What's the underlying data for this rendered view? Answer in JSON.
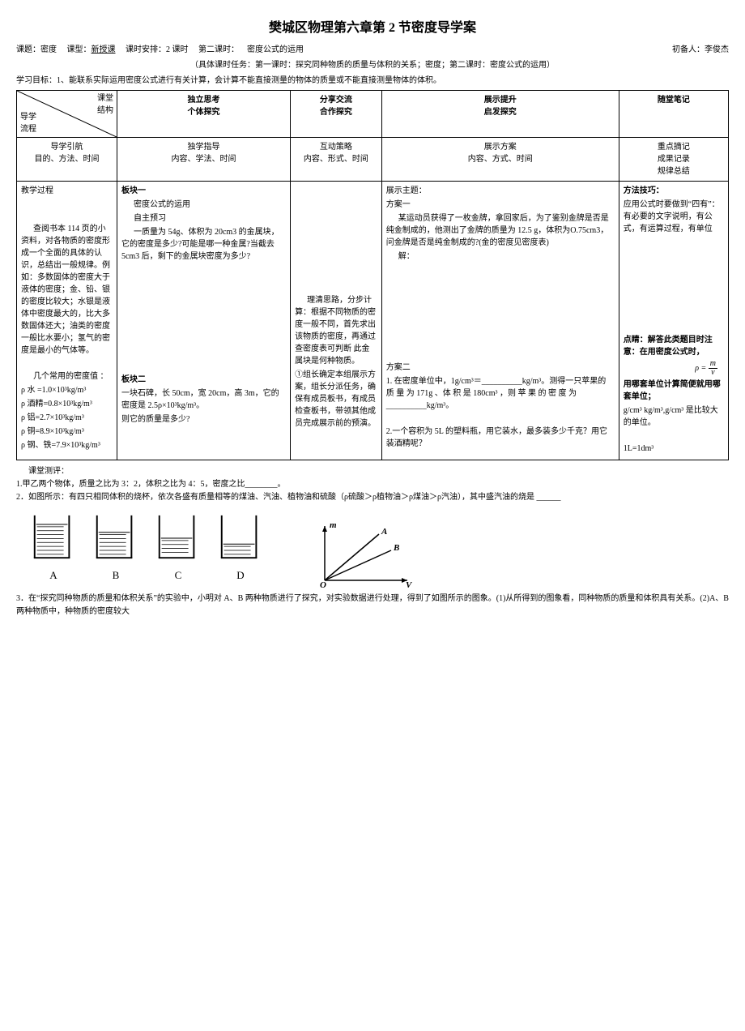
{
  "title": "樊城区物理第六章第 2 节密度导学案",
  "meta": {
    "topic_label": "课题：密度",
    "type_label": "课型：",
    "type_value": "新授课",
    "hours_label": "课时安排：2 课时",
    "second_hour": "第二课时：",
    "second_hour_content": "密度公式的运用",
    "preparer_label": "初备人：李俊杰"
  },
  "subtitle": "（具体课时任务：第一课时：探究同种物质的质量与体积的关系；密度；第二课时：密度公式的运用）",
  "objective": "学习目标：1、能联系实际运用密度公式进行有关计算，会计算不能直接测量的物体的质量或不能直接测量物体的体积。",
  "header": {
    "diag_top": "课堂\n结构",
    "diag_bottom": "导学\n流程",
    "col2_a": "独立思考",
    "col2_b": "个体探究",
    "col3_a": "分享交流",
    "col3_b": "合作探究",
    "col4_a": "展示提升",
    "col4_b": "启发探究",
    "col5": "随堂笔记"
  },
  "row2": {
    "c1_a": "导学引航",
    "c1_b": "目的、方法、时间",
    "c2_a": "独学指导",
    "c2_b": "内容、学法、时间",
    "c3_a": "互动策略",
    "c3_b": "内容、形式、时间",
    "c4_a": "展示方案",
    "c4_b": "内容、方式、时间",
    "c5_a": "重点摘记",
    "c5_b": "成果记录",
    "c5_c": "规律总结"
  },
  "col1": {
    "heading": "教学过程",
    "p1": "查阅书本 114 页的小资料，对各物质的密度形成一个全面的具体的认识，总结出一般规律。例如：多数固体的密度大于液体的密度；金、铅、银的密度比较大；水银是液体中密度最大的，比大多数固体还大；油类的密度一般比水要小；氢气的密度是最小的气体等。",
    "p2_head": "几个常用的密度值 ：",
    "rho_water": "ρ 水 =1.0×10³kg/m³",
    "rho_alcohol": "ρ 酒精=0.8×10³kg/m³",
    "rho_al": "ρ 铝=2.7×10³kg/m³",
    "rho_cu": "ρ 铜=8.9×10³kg/m³",
    "rho_fe": "ρ 钢、铁=7.9×10³kg/m³"
  },
  "col2": {
    "block1_title": "板块一",
    "block1_sub1": "密度公式的运用",
    "block1_sub2": "自主预习",
    "block1_q": "一质量为 54g、体积为 20cm3 的金属块，它的密度是多少?可能是哪一种金属?当截去5cm3 后，剩下的金属块密度为多少?",
    "block2_title": "板块二",
    "block2_q": "一块石碑，长 50cm，宽 20cm，高 3m，它的密度是 2.5ρ×10³kg/m³。",
    "block2_q2": "则它的质量是多少?"
  },
  "col3": {
    "p1": "理清思路，分步计算：根据不同物质的密度一般不同，首先求出该物质的密度，再通过查密度表可判断 此金属块是何种物质。",
    "p2": "①组长确定本组展示方案，组长分派任务，确保有成员板书，有成员检查板书，带领其他成员完成展示前的预演。"
  },
  "col4": {
    "topic": "展示主题：",
    "plan_a": "方案一",
    "plan_a_q": "某运动员获得了一枚金牌，拿回家后，为了鉴别金牌是否是纯金制成的，他测出了金牌的质量为 12.5 g，体积为O.75cm3，问金牌是否是纯金制成的?(金的密度见密度表)",
    "solve": "解：",
    "plan_b": "方案二",
    "plan_b_q1a": "1. 在密度单位中，1g/cm³＝__________kg/m³。测得一只苹果的 质 量 为 171g 、体 积 是 180cm³ ，则 苹 果 的 密 度 为__________kg/m³。",
    "plan_b_q2": "2.一个容积为 5L 的塑料瓶，用它装水，最多装多少千克？用它装酒精呢？"
  },
  "col5": {
    "h1": "方法技巧：",
    "p1": "应用公式时要做到“四有”：有必要的文字说明，有公式，有运算过程，有单位",
    "h2": "点睛：解答此类题目时注意：在用密度公式时，",
    "formula_before": "ρ =",
    "frac_n": "m",
    "frac_d": "v",
    "p2": "用哪套单位计算简便就用哪套单位；",
    "p3": "g/cm³ kg/m³,g/cm³ 是比较大的单位。",
    "p4": "1L=1dm³"
  },
  "after": {
    "heading": "课堂测评：",
    "q1": "1.甲乙两个物体，质量之比为 3：2，体积之比为 4：5，密度之比________。",
    "q2": "2．如图所示：有四只相同体积的烧杯，依次各盛有质量相等的煤油、汽油、植物油和硫酸（ρ硫酸＞ρ植物油＞ρ煤油＞ρ汽油），其中盛汽油的烧是 ______",
    "q3": "3．在“探究同种物质的质量和体积关系”的实验中，小明对 A、B 两种物质进行了探究，对实验数据进行处理，得到了如图所示的图象。(1)从所得到的图象看，同种物质的质量和体积具有关系。(2)A、B 两种物质中，种物质的密度较大"
  },
  "beakers": {
    "levels": [
      0.85,
      0.65,
      0.5,
      0.35
    ],
    "labels": [
      "A",
      "B",
      "C",
      "D"
    ]
  },
  "graph": {
    "y_label": "m",
    "x_label": "V",
    "origin": "O",
    "line_a": "A",
    "line_b": "B"
  }
}
